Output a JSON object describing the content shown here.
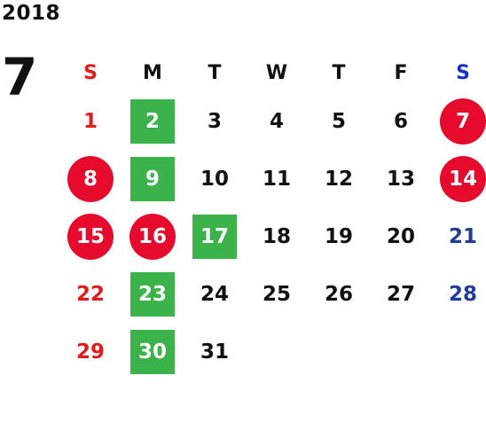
{
  "year": "2018",
  "month": "7",
  "weekdays": [
    {
      "label": "S",
      "color": "#e21b1b"
    },
    {
      "label": "M",
      "color": "#111111"
    },
    {
      "label": "T",
      "color": "#111111"
    },
    {
      "label": "W",
      "color": "#111111"
    },
    {
      "label": "T",
      "color": "#111111"
    },
    {
      "label": "F",
      "color": "#111111"
    },
    {
      "label": "S",
      "color": "#1432c8"
    }
  ],
  "weeks": [
    [
      {
        "day": "1",
        "color": "#e21b1b",
        "mark": "none"
      },
      {
        "day": "2",
        "color": "#ffffff",
        "mark": "green-square"
      },
      {
        "day": "3",
        "color": "#111111",
        "mark": "none"
      },
      {
        "day": "4",
        "color": "#111111",
        "mark": "none"
      },
      {
        "day": "5",
        "color": "#111111",
        "mark": "none"
      },
      {
        "day": "6",
        "color": "#111111",
        "mark": "none"
      },
      {
        "day": "7",
        "color": "#ffffff",
        "mark": "red-circle"
      }
    ],
    [
      {
        "day": "8",
        "color": "#ffffff",
        "mark": "red-circle"
      },
      {
        "day": "9",
        "color": "#ffffff",
        "mark": "green-square"
      },
      {
        "day": "10",
        "color": "#111111",
        "mark": "none"
      },
      {
        "day": "11",
        "color": "#111111",
        "mark": "none"
      },
      {
        "day": "12",
        "color": "#111111",
        "mark": "none"
      },
      {
        "day": "13",
        "color": "#111111",
        "mark": "none"
      },
      {
        "day": "14",
        "color": "#ffffff",
        "mark": "red-circle"
      }
    ],
    [
      {
        "day": "15",
        "color": "#ffffff",
        "mark": "red-circle"
      },
      {
        "day": "16",
        "color": "#ffffff",
        "mark": "red-circle"
      },
      {
        "day": "17",
        "color": "#ffffff",
        "mark": "green-square"
      },
      {
        "day": "18",
        "color": "#111111",
        "mark": "none"
      },
      {
        "day": "19",
        "color": "#111111",
        "mark": "none"
      },
      {
        "day": "20",
        "color": "#111111",
        "mark": "none"
      },
      {
        "day": "21",
        "color": "#1e3c96",
        "mark": "none"
      }
    ],
    [
      {
        "day": "22",
        "color": "#e21b1b",
        "mark": "none"
      },
      {
        "day": "23",
        "color": "#ffffff",
        "mark": "green-square"
      },
      {
        "day": "24",
        "color": "#111111",
        "mark": "none"
      },
      {
        "day": "25",
        "color": "#111111",
        "mark": "none"
      },
      {
        "day": "26",
        "color": "#111111",
        "mark": "none"
      },
      {
        "day": "27",
        "color": "#111111",
        "mark": "none"
      },
      {
        "day": "28",
        "color": "#1e3c96",
        "mark": "none"
      }
    ],
    [
      {
        "day": "29",
        "color": "#e21b1b",
        "mark": "none"
      },
      {
        "day": "30",
        "color": "#ffffff",
        "mark": "green-square"
      },
      {
        "day": "31",
        "color": "#111111",
        "mark": "none"
      }
    ]
  ],
  "colors": {
    "red_mark": "#e60a2c",
    "green_mark": "#3bb34a"
  }
}
